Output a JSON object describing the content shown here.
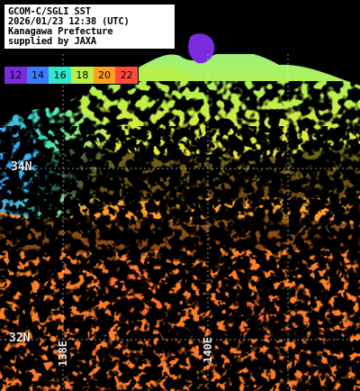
{
  "header": {
    "lines": [
      "GCOM-C/SGLI SST",
      "2026/01/23 12:38 (UTC)",
      "Kanagawa Prefecture",
      "supplied by JAXA"
    ]
  },
  "legend": {
    "items": [
      {
        "label": "12",
        "color": "#7a2be0"
      },
      {
        "label": "14",
        "color": "#3f7bff"
      },
      {
        "label": "16",
        "color": "#2ee8c8"
      },
      {
        "label": "18",
        "color": "#b8f04a"
      },
      {
        "label": "20",
        "color": "#ffa020"
      },
      {
        "label": "22",
        "color": "#ff4a3a"
      }
    ]
  },
  "grid_labels": {
    "lat_34": "34N",
    "lat_32": "32N",
    "lon_138": "138E",
    "lon_140": "140E"
  },
  "colors": {
    "cloud_mask": "#000000",
    "land": "#000000",
    "grid": "#ffffff"
  }
}
